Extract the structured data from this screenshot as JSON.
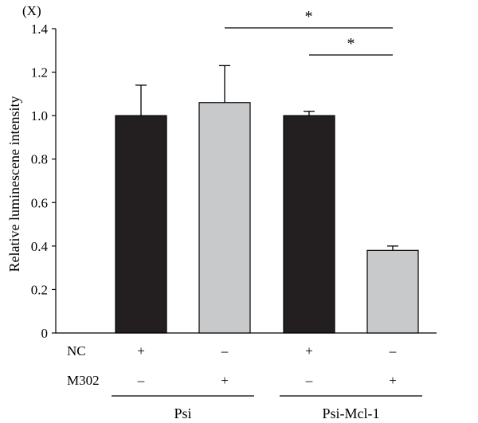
{
  "chart_data": {
    "type": "bar",
    "title": "",
    "ylabel": "Relative luminescene intensity",
    "unit_label": "(X)",
    "ylim": [
      0,
      1.4
    ],
    "yticks": [
      "0",
      "0.2",
      "0.4",
      "0.6",
      "0.8",
      "1.0",
      "1.2",
      "1.4"
    ],
    "bars": [
      {
        "value": 1.0,
        "error": 0.14,
        "color": "#231f20",
        "nc": "+",
        "m302": "–"
      },
      {
        "value": 1.06,
        "error": 0.17,
        "color": "#c8c9cb",
        "nc": "–",
        "m302": "+"
      },
      {
        "value": 1.0,
        "error": 0.02,
        "color": "#231f20",
        "nc": "+",
        "m302": "–"
      },
      {
        "value": 0.38,
        "error": 0.02,
        "color": "#c8c9cb",
        "nc": "–",
        "m302": "+"
      }
    ],
    "row_labels": {
      "nc": "NC",
      "m302": "M302"
    },
    "groups": [
      {
        "label": "Psi",
        "bars": [
          0,
          1
        ]
      },
      {
        "label": "Psi-Mcl-1",
        "bars": [
          2,
          3
        ]
      }
    ],
    "significance": [
      {
        "from": 1,
        "to": 3,
        "label": "*"
      },
      {
        "from": 2,
        "to": 3,
        "label": "*"
      }
    ]
  }
}
